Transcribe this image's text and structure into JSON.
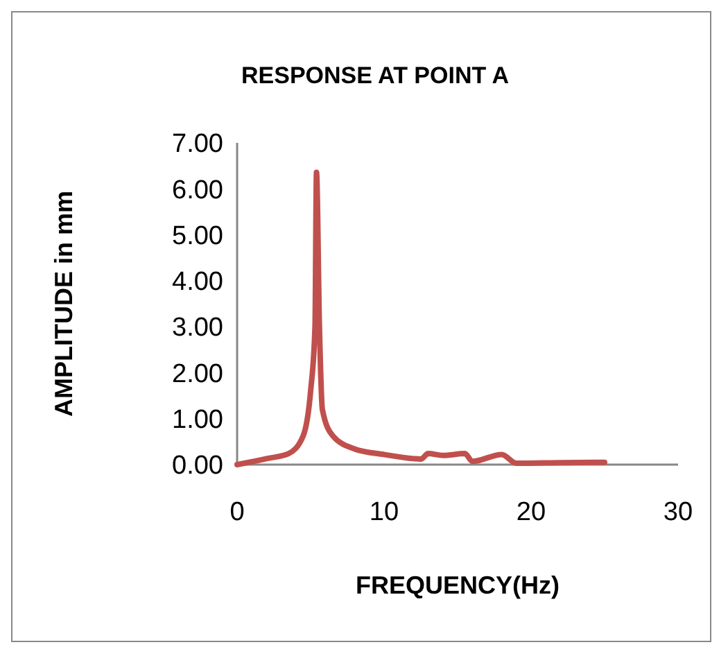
{
  "chart_data": {
    "type": "line",
    "title": "RESPONSE AT POINT A",
    "xlabel": "FREQUENCY(Hz)",
    "ylabel": "AMPLITUDE in mm",
    "series": [
      {
        "color": "#c0504d",
        "x": [
          0,
          2,
          3.5,
          4.5,
          5,
          5.3,
          5.4,
          5.6,
          5.8,
          6.5,
          8,
          10,
          12,
          12.5,
          13,
          14,
          15.5,
          16,
          18,
          19,
          22,
          25
        ],
        "values": [
          0,
          0.13,
          0.24,
          0.63,
          1.6,
          3.0,
          6.36,
          3.0,
          1.2,
          0.63,
          0.34,
          0.22,
          0.13,
          0.12,
          0.24,
          0.2,
          0.24,
          0.07,
          0.22,
          0.03,
          0.04,
          0.05
        ]
      }
    ],
    "xlim": [
      0,
      30
    ],
    "xticks": [
      0,
      10,
      20,
      30
    ],
    "ylim": [
      0,
      7
    ],
    "yticks": [
      {
        "value": 0,
        "label": "0.00"
      },
      {
        "value": 1,
        "label": "1.00"
      },
      {
        "value": 2,
        "label": "2.00"
      },
      {
        "value": 3,
        "label": "3.00"
      },
      {
        "value": 4,
        "label": "4.00"
      },
      {
        "value": 5,
        "label": "5.00"
      },
      {
        "value": 6,
        "label": "6.00"
      },
      {
        "value": 7,
        "label": "7.00"
      }
    ],
    "grid": false,
    "marker": "none",
    "line_style": "solid"
  }
}
